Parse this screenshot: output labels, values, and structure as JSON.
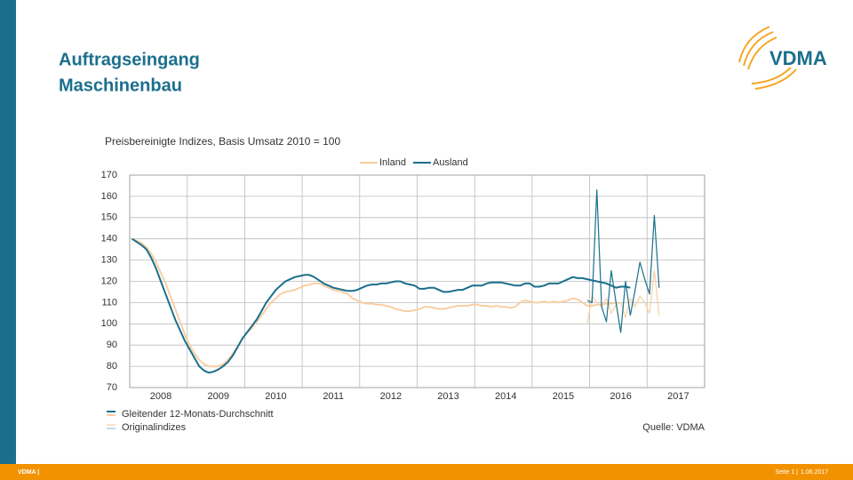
{
  "header": {
    "title_lines": [
      "Auftragseingang",
      "Maschinenbau"
    ]
  },
  "logo": "VDMA",
  "footer": {
    "left": "VDMA |",
    "page": "Seite 1 |",
    "date": "1.06.2017"
  },
  "chart_data": {
    "type": "line",
    "subtitle": "Preisbereinigte Indizes, Basis Umsatz 2010 = 100",
    "categories": [
      null,
      null,
      null,
      null,
      null,
      null,
      "2008",
      null,
      null,
      null,
      null,
      null,
      null,
      null,
      null,
      null,
      null,
      null,
      "2009",
      null,
      null,
      null,
      null,
      null,
      null,
      null,
      null,
      null,
      null,
      null,
      "2010",
      null,
      null,
      null,
      null,
      null,
      null,
      null,
      null,
      null,
      null,
      null,
      "2011",
      null,
      null,
      null,
      null,
      null,
      null,
      null,
      null,
      null,
      null,
      null,
      "2012",
      null,
      null,
      null,
      null,
      null,
      null,
      null,
      null,
      null,
      null,
      null,
      "2013",
      null,
      null,
      null,
      null,
      null,
      null,
      null,
      null,
      null,
      null,
      null,
      "2014",
      null,
      null,
      null,
      null,
      null,
      null,
      null,
      null,
      null,
      null,
      null,
      "2015",
      null,
      null,
      null,
      null,
      null,
      null,
      null,
      null,
      null,
      null,
      null,
      "2016",
      null,
      null,
      null,
      null,
      null,
      null,
      null,
      null,
      null,
      null,
      null,
      "2017",
      null,
      null,
      null,
      null,
      null
    ],
    "series": [
      {
        "name": "Inland",
        "color": "#f8cfa3",
        "values": [
          140,
          139,
          138,
          136,
          133,
          129,
          124,
          119,
          113,
          107,
          101,
          95,
          90,
          86,
          83,
          81,
          80,
          80,
          80,
          81,
          83,
          86,
          89,
          93,
          96,
          98,
          101,
          104,
          107,
          110,
          112,
          114,
          115,
          115.5,
          116,
          117,
          118,
          118.5,
          119,
          119,
          118,
          117,
          116,
          115.5,
          115,
          114,
          112,
          111,
          110,
          109.5,
          109.5,
          109,
          109,
          108.5,
          108,
          107,
          106.5,
          106,
          106,
          106.5,
          107,
          108,
          108,
          107.5,
          107,
          107,
          107.5,
          108,
          108.5,
          108.5,
          108.5,
          109,
          109,
          108.5,
          108.5,
          108,
          108.5,
          108,
          108,
          107.5,
          108,
          110,
          111,
          110.5,
          110,
          110,
          110.5,
          110,
          110.5,
          110,
          110.5,
          111,
          112,
          111.5,
          110,
          108.5,
          108.5,
          109,
          109,
          109.5,
          109.5,
          110,
          null,
          null,
          null,
          null,
          null,
          null,
          null,
          null,
          null,
          null,
          null,
          null,
          null,
          null,
          null,
          null,
          null,
          null
        ],
        "original_values": [
          null,
          null,
          null,
          null,
          null,
          null,
          null,
          null,
          null,
          null,
          null,
          null,
          null,
          null,
          null,
          null,
          null,
          null,
          null,
          null,
          null,
          null,
          null,
          null,
          null,
          null,
          null,
          null,
          null,
          null,
          null,
          null,
          null,
          null,
          null,
          null,
          null,
          null,
          null,
          null,
          null,
          null,
          null,
          null,
          null,
          null,
          null,
          null,
          null,
          null,
          null,
          null,
          null,
          null,
          null,
          null,
          null,
          null,
          null,
          null,
          null,
          null,
          null,
          null,
          null,
          null,
          null,
          null,
          null,
          null,
          null,
          null,
          null,
          null,
          null,
          null,
          null,
          null,
          null,
          null,
          null,
          null,
          null,
          null,
          null,
          null,
          null,
          null,
          null,
          null,
          null,
          null,
          null,
          null,
          null,
          100,
          113,
          110,
          108,
          112,
          105,
          109,
          110,
          103,
          112,
          108,
          113,
          110,
          105,
          125,
          104,
          null,
          null,
          null,
          null,
          null,
          null,
          null,
          null,
          null
        ]
      },
      {
        "name": "Ausland",
        "color": "#1b6f8c",
        "values": [
          140,
          138.5,
          137,
          135,
          131,
          126,
          120,
          114,
          108,
          102,
          97,
          92,
          88,
          84,
          80,
          78,
          77,
          77.5,
          78.5,
          80,
          82,
          85,
          89,
          93,
          96,
          99,
          102,
          106,
          110,
          113,
          116,
          118,
          120,
          121,
          122,
          122.5,
          123,
          123,
          122,
          120.5,
          119,
          118,
          117,
          116.5,
          116,
          115.5,
          115.5,
          116,
          117,
          118,
          118.5,
          118.5,
          119,
          119,
          119.5,
          120,
          120,
          119,
          118.5,
          118,
          116.5,
          116.5,
          117,
          117,
          116,
          115,
          115,
          115.5,
          116,
          116,
          117,
          118,
          118,
          118,
          119,
          119.5,
          119.5,
          119.5,
          119,
          118.5,
          118,
          118,
          119,
          119,
          117.5,
          117.5,
          118,
          119,
          119,
          119,
          120,
          121,
          122,
          121.5,
          121.5,
          121,
          120.5,
          120,
          119.5,
          119,
          118,
          117,
          117.5,
          117.5,
          117,
          null,
          null,
          null,
          null,
          null,
          null,
          null,
          null,
          null,
          null,
          null,
          null,
          null,
          null,
          null
        ],
        "original_values": [
          null,
          null,
          null,
          null,
          null,
          null,
          null,
          null,
          null,
          null,
          null,
          null,
          null,
          null,
          null,
          null,
          null,
          null,
          null,
          null,
          null,
          null,
          null,
          null,
          null,
          null,
          null,
          null,
          null,
          null,
          null,
          null,
          null,
          null,
          null,
          null,
          null,
          null,
          null,
          null,
          null,
          null,
          null,
          null,
          null,
          null,
          null,
          null,
          null,
          null,
          null,
          null,
          null,
          null,
          null,
          null,
          null,
          null,
          null,
          null,
          null,
          null,
          null,
          null,
          null,
          null,
          null,
          null,
          null,
          null,
          null,
          null,
          null,
          null,
          null,
          null,
          null,
          null,
          null,
          null,
          null,
          null,
          null,
          null,
          null,
          null,
          null,
          null,
          null,
          null,
          null,
          null,
          null,
          null,
          null,
          111,
          110,
          163,
          108,
          101,
          125,
          110,
          96,
          120,
          104,
          116,
          129,
          121,
          114,
          151,
          117,
          null,
          null,
          null,
          null,
          null,
          null,
          null,
          null,
          null
        ]
      }
    ],
    "ylim": [
      70,
      170
    ],
    "yticks": [
      70,
      80,
      90,
      100,
      110,
      120,
      130,
      140,
      150,
      160,
      170
    ],
    "grid": true,
    "line_styles": [
      "Gleitender 12-Monats-Durchschnitt",
      "Originalindizes"
    ],
    "source": "Quelle: VDMA"
  }
}
